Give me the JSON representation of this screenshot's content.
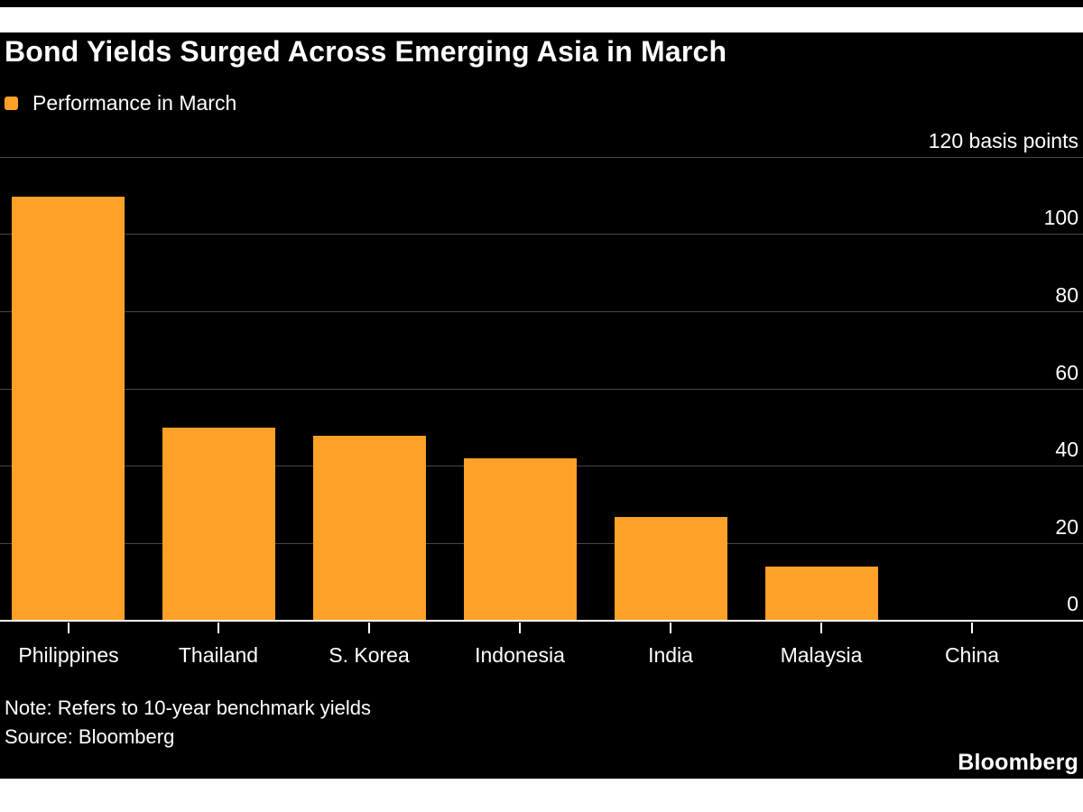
{
  "header": {
    "title": "Bond Yields Surged Across Emerging Asia in March"
  },
  "legend": {
    "label": "Performance in March",
    "swatch_color": "#FFA028"
  },
  "footer": {
    "note": "Note: Refers to 10-year benchmark yields",
    "source": "Source: Bloomberg",
    "logo": "Bloomberg"
  },
  "colors": {
    "background": "#000000",
    "page_background": "#ffffff",
    "bar": "#FFA028",
    "gridline": "#484848",
    "axis": "#ffffff",
    "text": "#ffffff"
  },
  "chart_data": {
    "type": "bar",
    "title": "Bond Yields Surged Across Emerging Asia in March",
    "series_name": "Performance in March",
    "categories": [
      "Philippines",
      "Thailand",
      "S. Korea",
      "Indonesia",
      "India",
      "Malaysia",
      "China"
    ],
    "values": [
      110,
      50,
      48,
      42,
      27,
      14,
      0
    ],
    "unit": "basis points",
    "xlabel": "",
    "ylabel": "basis points",
    "ylim": [
      0,
      120
    ],
    "grid": "horizontal",
    "legend_position": "top-left",
    "yticks": [
      {
        "value": 120,
        "label": "120 basis points"
      },
      {
        "value": 100,
        "label": "100"
      },
      {
        "value": 80,
        "label": "80"
      },
      {
        "value": 60,
        "label": "60"
      },
      {
        "value": 40,
        "label": "40"
      },
      {
        "value": 20,
        "label": "20"
      },
      {
        "value": 0,
        "label": "0"
      }
    ]
  }
}
